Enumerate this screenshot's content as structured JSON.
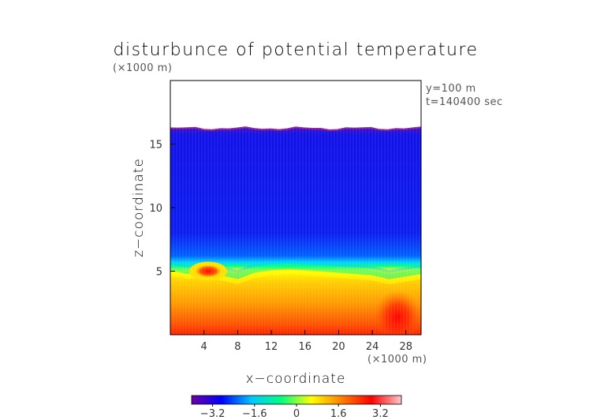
{
  "chart_data": {
    "type": "heatmap",
    "title": "disturbunce of potential temperature",
    "unit_top": "(×1000 m)",
    "unit_bottom": "(×1000 m)",
    "xlabel": "x−coordinate",
    "ylabel": "z−coordinate",
    "annotations": [
      "y=100 m",
      "t=140400 sec"
    ],
    "x_ticks": [
      "4",
      "8",
      "12",
      "16",
      "20",
      "24",
      "28"
    ],
    "x_tick_values": [
      4,
      8,
      12,
      16,
      20,
      24,
      28
    ],
    "y_ticks": [
      "5",
      "10",
      "15"
    ],
    "y_tick_values": [
      5,
      10,
      15
    ],
    "xlim": [
      0,
      29.8
    ],
    "ylim": [
      0,
      20
    ],
    "data_top_z": 16.2,
    "colorbar": {
      "ticks": [
        "−3.2",
        "−1.6",
        "0",
        "1.6",
        "3.2"
      ],
      "tick_values": [
        -3.2,
        -1.6,
        0,
        1.6,
        3.2
      ],
      "range": [
        -4.0,
        4.0
      ],
      "colors": [
        "#6a00a8",
        "#0000ff",
        "#00c8ff",
        "#00ff80",
        "#ffff00",
        "#ff8000",
        "#ff0000",
        "#ffc8c8"
      ]
    },
    "profile": {
      "x": [
        0,
        2,
        4,
        6,
        8,
        10,
        12,
        14,
        16,
        18,
        20,
        22,
        24,
        26,
        28,
        29.8
      ],
      "interface_z": [
        5.3,
        5.0,
        5.2,
        4.9,
        4.6,
        5.1,
        5.3,
        5.4,
        5.3,
        5.2,
        5.1,
        5.0,
        4.9,
        4.6,
        4.8,
        5.0
      ]
    },
    "features": [
      {
        "label": "warm anomaly",
        "x": 4.5,
        "z": 5.0
      },
      {
        "label": "warm anomaly",
        "x": 27.0,
        "z": 1.0
      }
    ]
  }
}
